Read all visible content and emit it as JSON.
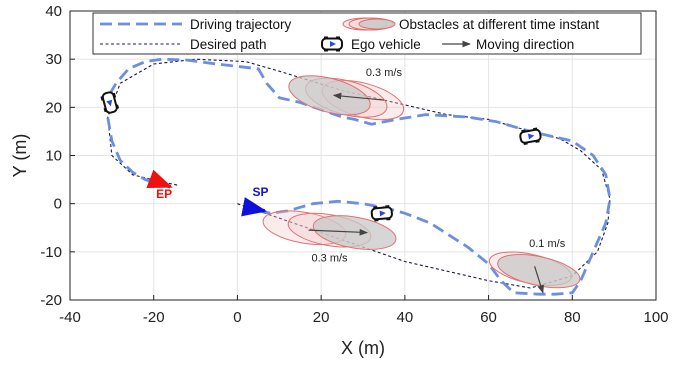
{
  "chart_data": {
    "type": "line",
    "xlabel": "X (m)",
    "ylabel": "Y (m)",
    "xlim": [
      -40,
      100
    ],
    "ylim": [
      -20,
      40
    ],
    "xticks": [
      -40,
      -20,
      0,
      20,
      40,
      60,
      80,
      100
    ],
    "yticks": [
      -20,
      -10,
      0,
      10,
      20,
      30,
      40
    ],
    "grid": true,
    "legend": {
      "placement": "top",
      "entries": [
        {
          "label": "Driving trajectory",
          "style": "dashed",
          "color": "#6c8fe0"
        },
        {
          "label": "Desired path",
          "style": "dashed-thin",
          "color": "#1a1a6e"
        },
        {
          "label": "Obstacles at different time instant",
          "style": "ellipse",
          "color": "#e06b6b"
        },
        {
          "label": "Ego vehicle",
          "style": "vehicle",
          "color": "#111111"
        },
        {
          "label": "Moving direction",
          "style": "arrow",
          "color": "#444444"
        }
      ]
    },
    "series": [
      {
        "style": "desired",
        "x": [
          0,
          20,
          40,
          60,
          70,
          80,
          86,
          88.5,
          89,
          87,
          82,
          77,
          70,
          60,
          50,
          40,
          25,
          10,
          2,
          -10,
          -20,
          -28,
          -31,
          -30,
          -25,
          -18,
          -14
        ],
        "y": [
          0,
          -6,
          -12,
          -16,
          -17.5,
          -15,
          -10,
          -4,
          1,
          7,
          11,
          13.5,
          15,
          17.5,
          18.5,
          20.5,
          23.5,
          27.5,
          29.5,
          30,
          29,
          25,
          18,
          10,
          6,
          4.5,
          3.8
        ]
      },
      {
        "style": "trajectory",
        "x": [
          5,
          8,
          12,
          18,
          24,
          30,
          36,
          40,
          46,
          55,
          60,
          63,
          66,
          72,
          76,
          80,
          82,
          85,
          88,
          89,
          88,
          85,
          80,
          75,
          70,
          62,
          55,
          45,
          38,
          32,
          28,
          25,
          20,
          15,
          10,
          7,
          5,
          0,
          -5,
          -12,
          -18,
          -22,
          -26,
          -29,
          -31,
          -31,
          -30,
          -28,
          -25,
          -22,
          -19,
          -16
        ],
        "y": [
          -1.5,
          -2,
          -1.5,
          0,
          0.5,
          0,
          -1,
          -2,
          -4,
          -9,
          -12.5,
          -16,
          -18.5,
          -18.8,
          -18.8,
          -18.5,
          -16,
          -10,
          -4,
          1,
          6,
          10,
          13,
          14,
          15,
          17,
          18,
          18.5,
          17.5,
          16.5,
          17.5,
          18,
          19.5,
          21,
          22,
          25,
          28,
          28.5,
          29,
          29.8,
          30,
          29.5,
          28,
          25,
          22,
          18,
          13,
          9,
          6.5,
          5,
          4,
          3.5
        ]
      }
    ],
    "obstacles": [
      {
        "cx": 22,
        "cy": 22,
        "rx": 10,
        "ry": 3.5,
        "angle_deg": -15,
        "label": "0.3 m/s",
        "label_x": 35,
        "label_y": 26.5,
        "arrow_from": [
          35,
          21.5
        ],
        "arrow_to": [
          23,
          22.5
        ],
        "instances": [
          {
            "cx": 30,
            "cy": 21.5
          },
          {
            "cx": 26,
            "cy": 22
          },
          {
            "cx": 22,
            "cy": 22.5
          }
        ]
      },
      {
        "cx": 20,
        "cy": -5,
        "rx": 10,
        "ry": 3.2,
        "angle_deg": -10,
        "label": "0.3 m/s",
        "label_x": 22,
        "label_y": -12,
        "arrow_from": [
          17,
          -5.5
        ],
        "arrow_to": [
          31,
          -6
        ],
        "instances": [
          {
            "cx": 16,
            "cy": -5
          },
          {
            "cx": 22,
            "cy": -5.5
          },
          {
            "cx": 28,
            "cy": -6
          }
        ]
      },
      {
        "cx": 72,
        "cy": -14,
        "rx": 10,
        "ry": 3,
        "angle_deg": -12,
        "label": "0.1 m/s",
        "label_x": 74,
        "label_y": -9,
        "arrow_from": [
          71,
          -13
        ],
        "arrow_to": [
          73,
          -18.5
        ],
        "instances": [
          {
            "cx": 70,
            "cy": -13.5
          },
          {
            "cx": 72,
            "cy": -14
          }
        ]
      }
    ],
    "vehicles": [
      {
        "x": -30.5,
        "y": 21,
        "angle_deg": -75
      },
      {
        "x": 70,
        "y": 14,
        "angle_deg": 10
      },
      {
        "x": 34.5,
        "y": -2,
        "angle_deg": 5
      }
    ],
    "markers": [
      {
        "label": "SP",
        "x": 3.5,
        "y": -1,
        "color": "#1010dd",
        "label_x": 5.5,
        "label_y": 1.6,
        "arrow_dx": 3,
        "arrow_dy": -0.5
      },
      {
        "label": "EP",
        "x": -19,
        "y": 4.5,
        "color": "#ee1111",
        "label_x": -17.5,
        "label_y": 1.2,
        "arrow_dx": 3,
        "arrow_dy": -1
      }
    ]
  }
}
